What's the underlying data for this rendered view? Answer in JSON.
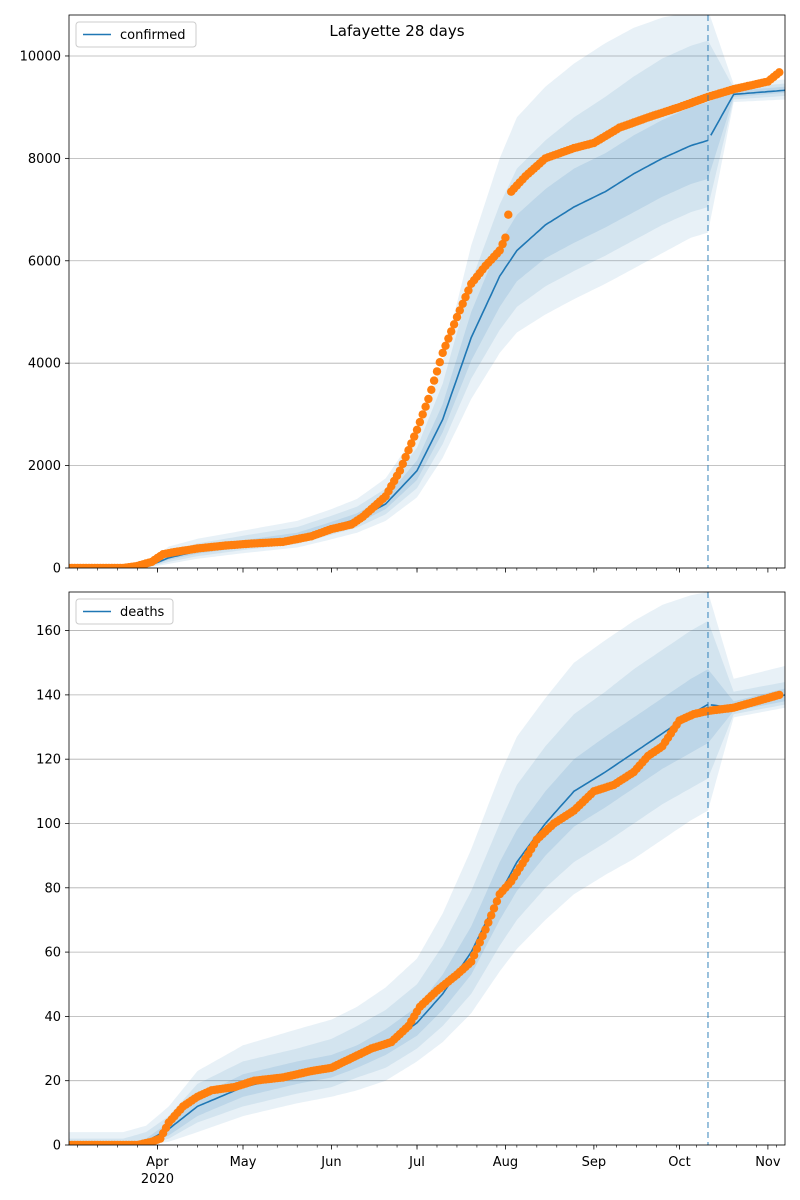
{
  "figure": {
    "title": "Lafayette 28 days",
    "colors": {
      "model": "#1f77b4",
      "observed": "#ff7f0e",
      "grid": "#b0b0b0"
    }
  },
  "chart_data": [
    {
      "type": "line",
      "legend": {
        "label": "confirmed",
        "placement": "top-left"
      },
      "ylim": [
        0,
        10800
      ],
      "yticks": [
        0,
        2000,
        4000,
        6000,
        8000,
        10000
      ],
      "xlim": [
        "2020-03-01",
        "2020-11-07"
      ],
      "xticks": [
        {
          "date": "2020-04-01",
          "label": "Apr",
          "sublabel": "2020"
        },
        {
          "date": "2020-05-01",
          "label": "May"
        },
        {
          "date": "2020-06-01",
          "label": "Jun"
        },
        {
          "date": "2020-07-01",
          "label": "Jul"
        },
        {
          "date": "2020-08-01",
          "label": "Aug"
        },
        {
          "date": "2020-09-01",
          "label": "Sep"
        },
        {
          "date": "2020-10-01",
          "label": "Oct"
        },
        {
          "date": "2020-11-01",
          "label": "Nov"
        }
      ],
      "grid": "horizontal",
      "forecast_start": "2020-10-11",
      "model": {
        "name": "confirmed",
        "dates": [
          "2020-03-01",
          "2020-03-20",
          "2020-03-28",
          "2020-04-05",
          "2020-04-15",
          "2020-05-01",
          "2020-05-20",
          "2020-06-01",
          "2020-06-10",
          "2020-06-20",
          "2020-07-01",
          "2020-07-10",
          "2020-07-20",
          "2020-07-30",
          "2020-08-05",
          "2020-08-15",
          "2020-08-25",
          "2020-09-05",
          "2020-09-15",
          "2020-09-25",
          "2020-10-05",
          "2020-10-11",
          "2020-10-20",
          "2020-11-07"
        ],
        "median": [
          0,
          0,
          20,
          200,
          330,
          460,
          600,
          800,
          960,
          1250,
          1900,
          2900,
          4500,
          5700,
          6200,
          6700,
          7050,
          7350,
          7700,
          8000,
          8250,
          8350,
          9250,
          9330
        ],
        "band_50_low": [
          0,
          0,
          10,
          160,
          280,
          400,
          530,
          720,
          870,
          1150,
          1720,
          2650,
          4050,
          5100,
          5600,
          6050,
          6350,
          6650,
          6950,
          7250,
          7500,
          7600,
          9200,
          9280
        ],
        "band_50_high": [
          0,
          0,
          30,
          250,
          400,
          540,
          690,
          900,
          1070,
          1380,
          2100,
          3200,
          5000,
          6350,
          6900,
          7400,
          7800,
          8100,
          8450,
          8750,
          9000,
          9100,
          9320,
          9400
        ],
        "band_80_low": [
          0,
          0,
          5,
          120,
          230,
          350,
          470,
          650,
          790,
          1050,
          1560,
          2420,
          3700,
          4650,
          5100,
          5500,
          5800,
          6100,
          6400,
          6700,
          6950,
          7050,
          9150,
          9220
        ],
        "band_80_high": [
          0,
          0,
          50,
          330,
          480,
          630,
          800,
          1020,
          1200,
          1550,
          2350,
          3600,
          5600,
          7100,
          7800,
          8350,
          8800,
          9200,
          9600,
          9950,
          10200,
          10300,
          9380,
          9460
        ],
        "band_95_low": [
          0,
          0,
          0,
          80,
          180,
          290,
          400,
          560,
          690,
          920,
          1380,
          2150,
          3300,
          4200,
          4600,
          4950,
          5250,
          5550,
          5850,
          6150,
          6450,
          6550,
          9100,
          9150
        ],
        "band_95_high": [
          0,
          0,
          80,
          420,
          570,
          730,
          920,
          1150,
          1350,
          1750,
          2650,
          4050,
          6300,
          8000,
          8800,
          9400,
          9850,
          10250,
          10550,
          10750,
          10850,
          10900,
          9450,
          9540
        ]
      },
      "observed": {
        "dates": [
          "2020-03-01",
          "2020-03-10",
          "2020-03-20",
          "2020-03-25",
          "2020-03-30",
          "2020-04-03",
          "2020-04-08",
          "2020-04-15",
          "2020-04-25",
          "2020-05-05",
          "2020-05-15",
          "2020-05-25",
          "2020-06-01",
          "2020-06-08",
          "2020-06-12",
          "2020-06-20",
          "2020-06-25",
          "2020-07-01",
          "2020-07-05",
          "2020-07-10",
          "2020-07-15",
          "2020-07-20",
          "2020-07-25",
          "2020-07-30",
          "2020-08-01",
          "2020-08-03",
          "2020-08-08",
          "2020-08-15",
          "2020-08-25",
          "2020-09-01",
          "2020-09-10",
          "2020-09-20",
          "2020-10-01",
          "2020-10-11",
          "2020-10-20",
          "2020-11-01",
          "2020-11-05"
        ],
        "values": [
          0,
          0,
          0,
          40,
          120,
          270,
          320,
          380,
          440,
          480,
          510,
          620,
          760,
          850,
          1000,
          1400,
          1900,
          2700,
          3300,
          4200,
          4900,
          5550,
          5900,
          6200,
          6450,
          7350,
          7650,
          8000,
          8200,
          8300,
          8600,
          8800,
          9000,
          9200,
          9350,
          9500,
          9680
        ]
      }
    },
    {
      "type": "line",
      "legend": {
        "label": "deaths",
        "placement": "top-left"
      },
      "ylim": [
        0,
        172
      ],
      "yticks": [
        0,
        20,
        40,
        60,
        80,
        100,
        120,
        140,
        160
      ],
      "xlim": [
        "2020-03-01",
        "2020-11-07"
      ],
      "xticks": [
        {
          "date": "2020-04-01",
          "label": "Apr",
          "sublabel": "2020"
        },
        {
          "date": "2020-05-01",
          "label": "May"
        },
        {
          "date": "2020-06-01",
          "label": "Jun"
        },
        {
          "date": "2020-07-01",
          "label": "Jul"
        },
        {
          "date": "2020-08-01",
          "label": "Aug"
        },
        {
          "date": "2020-09-01",
          "label": "Sep"
        },
        {
          "date": "2020-10-01",
          "label": "Oct"
        },
        {
          "date": "2020-11-01",
          "label": "Nov"
        }
      ],
      "grid": "horizontal",
      "forecast_start": "2020-10-11",
      "model": {
        "name": "deaths",
        "dates": [
          "2020-03-01",
          "2020-03-20",
          "2020-03-28",
          "2020-04-05",
          "2020-04-15",
          "2020-05-01",
          "2020-05-20",
          "2020-06-01",
          "2020-06-10",
          "2020-06-20",
          "2020-07-01",
          "2020-07-10",
          "2020-07-20",
          "2020-07-30",
          "2020-08-05",
          "2020-08-15",
          "2020-08-25",
          "2020-09-05",
          "2020-09-15",
          "2020-09-25",
          "2020-10-05",
          "2020-10-11",
          "2020-10-20",
          "2020-11-07"
        ],
        "median": [
          0,
          0,
          1,
          5,
          12,
          18,
          22,
          24,
          27,
          31,
          38,
          47,
          60,
          78,
          88,
          100,
          110,
          116,
          122,
          128,
          134,
          137,
          136,
          140
        ],
        "band_50_low": [
          0,
          0,
          0,
          3,
          9,
          15,
          19,
          21,
          24,
          28,
          34,
          42,
          53,
          70,
          79,
          90,
          99,
          105,
          111,
          117,
          122,
          125,
          135,
          138
        ],
        "band_50_high": [
          0,
          0,
          2,
          7,
          15,
          22,
          26,
          28,
          31,
          36,
          43,
          53,
          68,
          88,
          98,
          110,
          120,
          127,
          133,
          139,
          145,
          148,
          138,
          142
        ],
        "band_80_low": [
          0,
          0,
          0,
          2,
          7,
          12,
          16,
          18,
          21,
          24,
          30,
          37,
          47,
          62,
          70,
          80,
          88,
          94,
          100,
          106,
          111,
          114,
          134,
          137
        ],
        "band_80_high": [
          2,
          2,
          4,
          9,
          19,
          26,
          30,
          33,
          37,
          42,
          50,
          62,
          79,
          100,
          112,
          124,
          134,
          141,
          148,
          154,
          160,
          163,
          141,
          144
        ],
        "band_95_low": [
          0,
          0,
          0,
          1,
          4,
          9,
          13,
          15,
          17,
          20,
          26,
          32,
          41,
          54,
          61,
          70,
          78,
          84,
          89,
          95,
          101,
          104,
          133,
          136
        ],
        "band_95_high": [
          4,
          4,
          6,
          12,
          23,
          31,
          36,
          39,
          43,
          49,
          58,
          72,
          92,
          115,
          127,
          139,
          150,
          157,
          163,
          168,
          171,
          172,
          145,
          149
        ]
      },
      "observed": {
        "dates": [
          "2020-03-01",
          "2020-03-10",
          "2020-03-20",
          "2020-03-25",
          "2020-03-30",
          "2020-04-02",
          "2020-04-05",
          "2020-04-10",
          "2020-04-15",
          "2020-04-20",
          "2020-04-28",
          "2020-05-05",
          "2020-05-15",
          "2020-05-25",
          "2020-06-01",
          "2020-06-08",
          "2020-06-15",
          "2020-06-22",
          "2020-06-28",
          "2020-07-02",
          "2020-07-08",
          "2020-07-15",
          "2020-07-20",
          "2020-07-25",
          "2020-07-30",
          "2020-08-03",
          "2020-08-08",
          "2020-08-12",
          "2020-08-18",
          "2020-08-25",
          "2020-09-01",
          "2020-09-08",
          "2020-09-15",
          "2020-09-20",
          "2020-09-25",
          "2020-10-01",
          "2020-10-06",
          "2020-10-11",
          "2020-10-20",
          "2020-10-28",
          "2020-11-05"
        ],
        "values": [
          0,
          0,
          0,
          0,
          1,
          2,
          7,
          12,
          15,
          17,
          18,
          20,
          21,
          23,
          24,
          27,
          30,
          32,
          37,
          43,
          48,
          53,
          57,
          67,
          78,
          82,
          89,
          95,
          100,
          104,
          110,
          112,
          116,
          121,
          124,
          132,
          134,
          135,
          136,
          138,
          140
        ]
      }
    }
  ]
}
